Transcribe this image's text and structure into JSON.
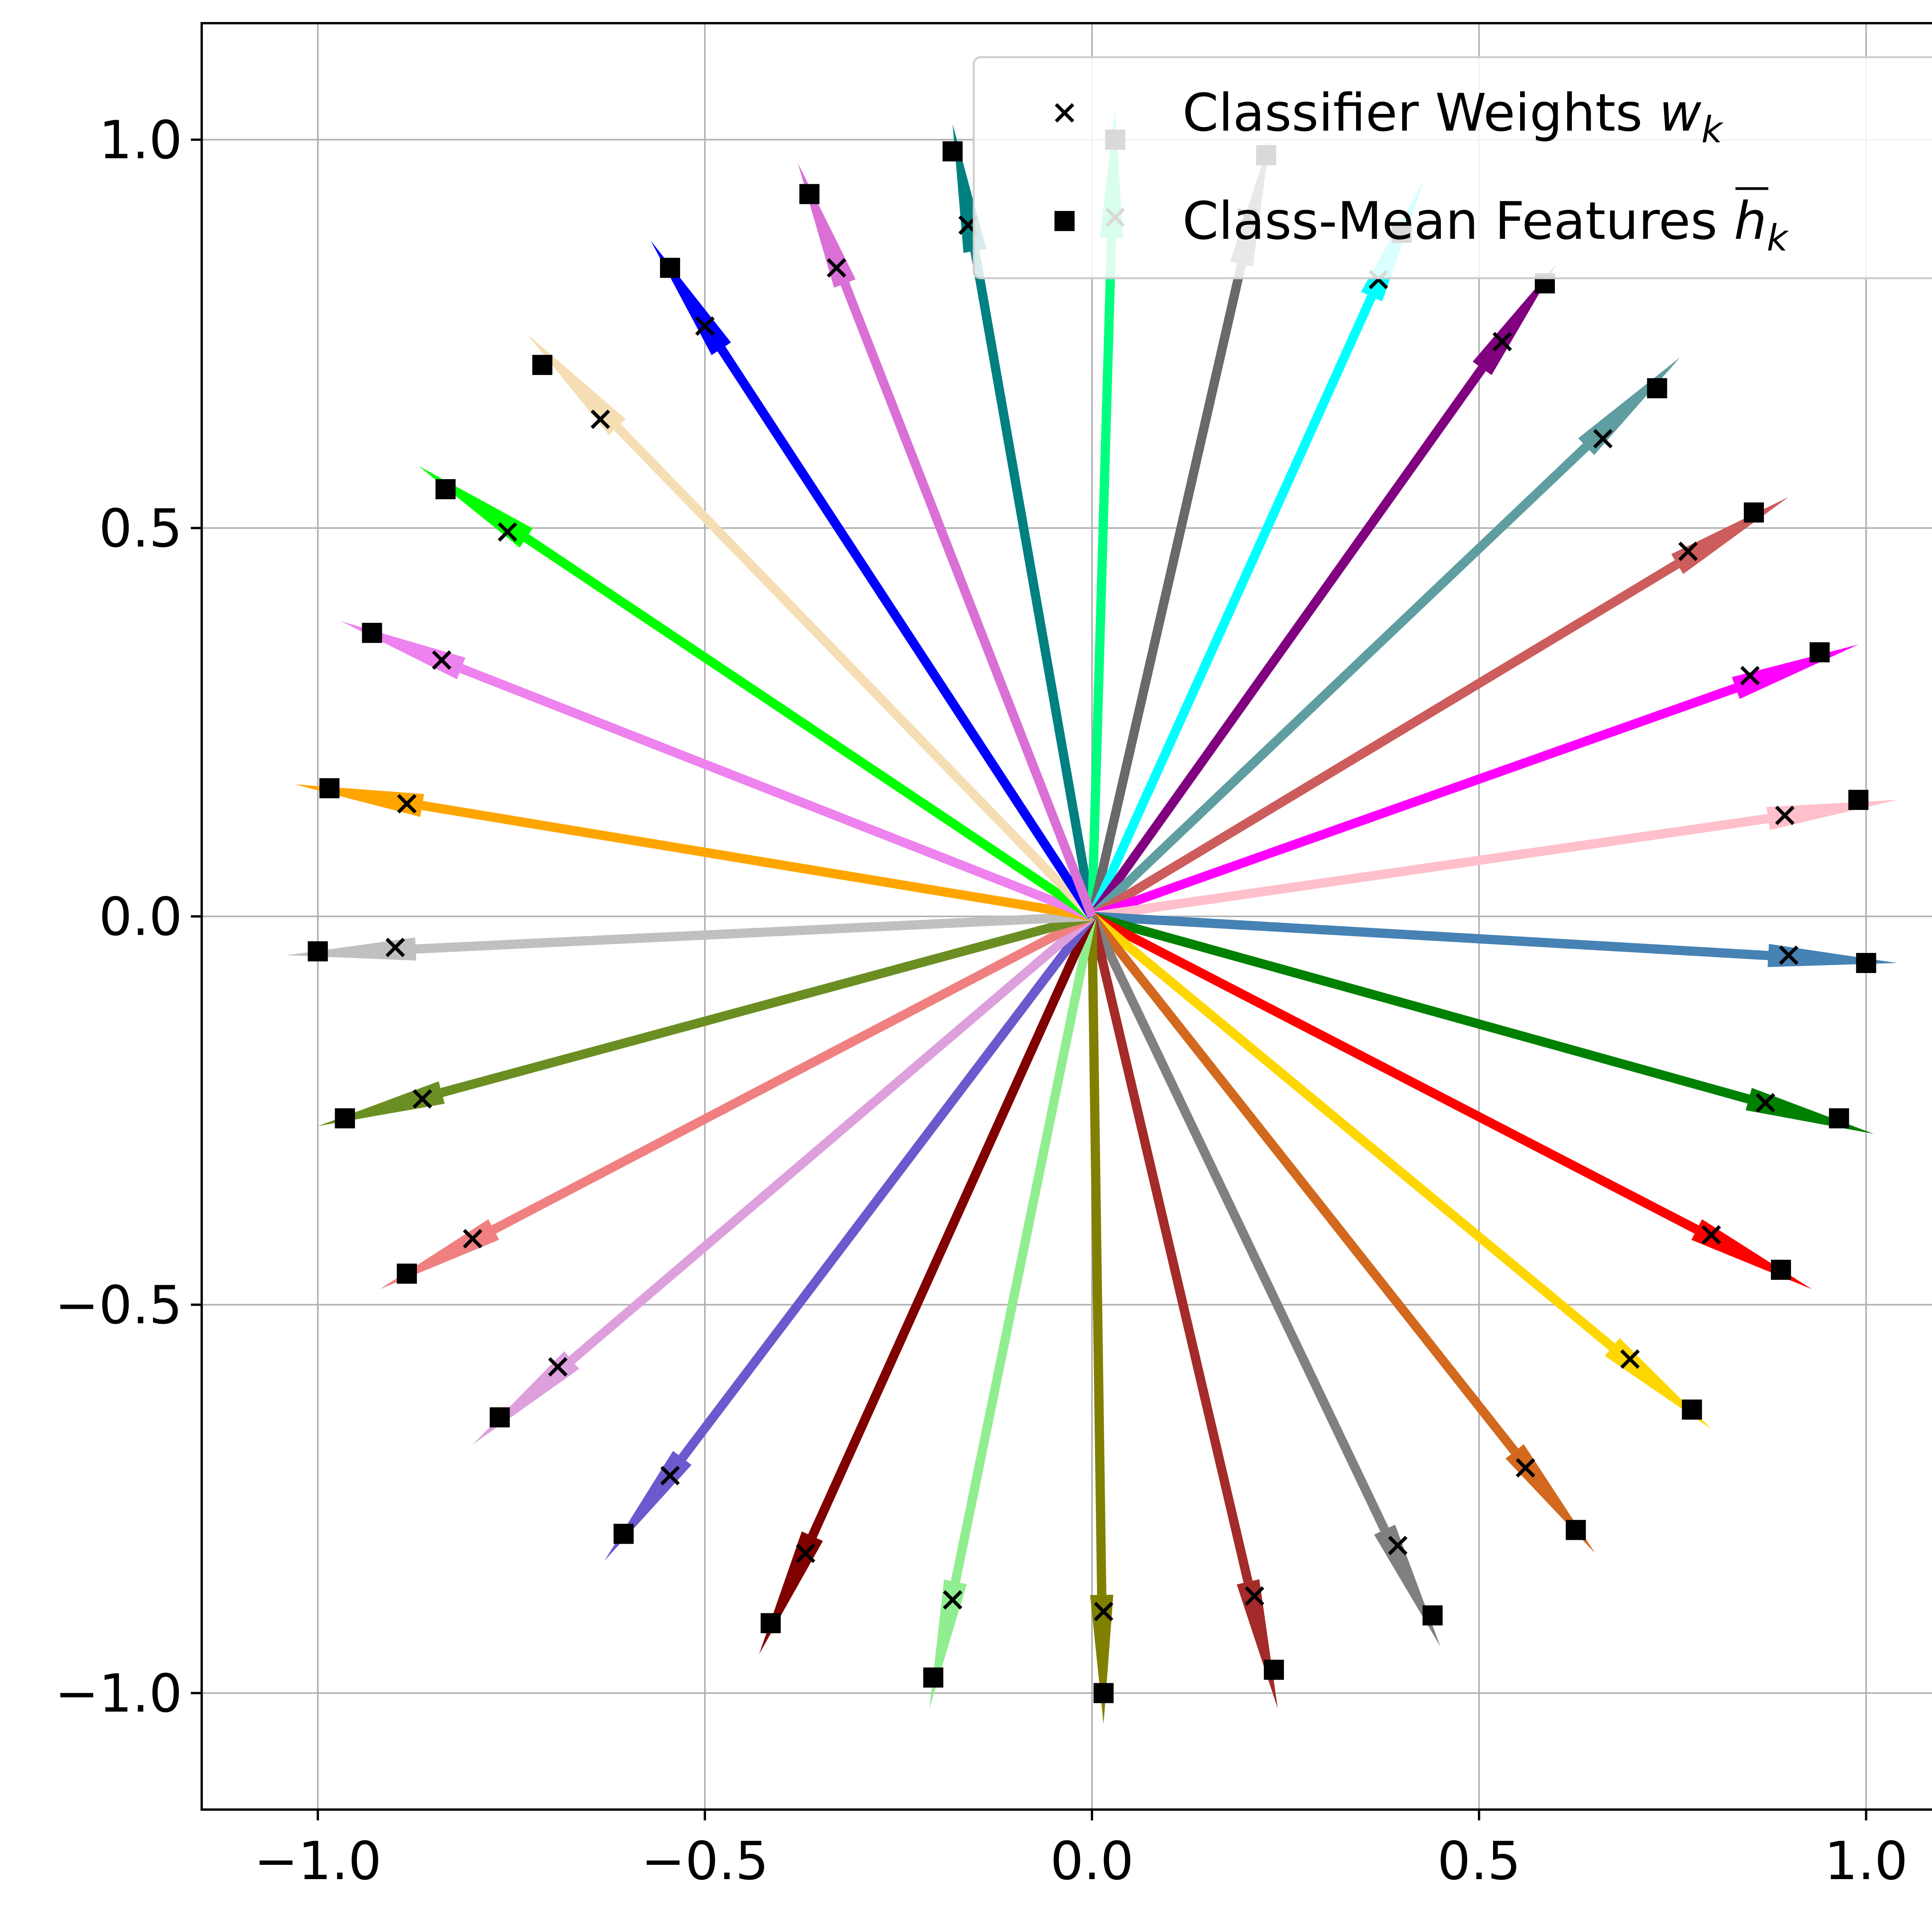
{
  "chart_data": {
    "type": "scatter",
    "title": "",
    "xlabel": "",
    "ylabel": "",
    "xlim": [
      -1.15,
      1.15
    ],
    "ylim": [
      -1.15,
      1.15
    ],
    "grid": true,
    "xticks": [
      -1.0,
      -0.5,
      0.0,
      0.5,
      1.0
    ],
    "yticks": [
      -1.0,
      -0.5,
      0.0,
      0.5,
      1.0
    ],
    "xtick_labels": [
      "−1.0",
      "−0.5",
      "0.0",
      "0.5",
      "1.0"
    ],
    "ytick_labels": [
      "−1.0",
      "−0.5",
      "0.0",
      "0.5",
      "1.0"
    ],
    "legend": {
      "placement": "top-right",
      "entries": [
        {
          "marker": "x",
          "text": "Classifier Weights ",
          "math": "w",
          "sub": "k"
        },
        {
          "marker": "square",
          "text": "Class-Mean Features ",
          "math": "h",
          "sub": "k",
          "overline": true
        }
      ]
    },
    "classes": [
      {
        "color": "#008080",
        "tip": [
          -0.18,
          1.02
        ],
        "w": [
          -0.16,
          0.89
        ],
        "h": [
          -0.18,
          0.985
        ]
      },
      {
        "color": "#00ff7f",
        "tip": [
          0.03,
          1.04
        ],
        "w": [
          0.03,
          0.9
        ],
        "h": [
          0.03,
          1.0
        ]
      },
      {
        "color": "#696969",
        "tip": [
          0.23,
          1.0
        ],
        "w": [
          0.2,
          0.9
        ],
        "h": [
          0.225,
          0.98
        ]
      },
      {
        "color": "#00ffff",
        "tip": [
          0.43,
          0.95
        ],
        "w": [
          0.37,
          0.82
        ],
        "h": [
          0.4,
          0.88
        ]
      },
      {
        "color": "#800080",
        "tip": [
          0.6,
          0.84
        ],
        "w": [
          0.53,
          0.74
        ],
        "h": [
          0.585,
          0.815
        ]
      },
      {
        "color": "#5f9ea0",
        "tip": [
          0.76,
          0.72
        ],
        "w": [
          0.66,
          0.615
        ],
        "h": [
          0.73,
          0.68
        ]
      },
      {
        "color": "#cd5c5c",
        "tip": [
          0.9,
          0.54
        ],
        "w": [
          0.77,
          0.47
        ],
        "h": [
          0.855,
          0.52
        ]
      },
      {
        "color": "#ff00ff",
        "tip": [
          0.99,
          0.35
        ],
        "w": [
          0.85,
          0.31
        ],
        "h": [
          0.94,
          0.34
        ]
      },
      {
        "color": "#ffc0cb",
        "tip": [
          1.04,
          0.15
        ],
        "w": [
          0.895,
          0.13
        ],
        "h": [
          0.99,
          0.15
        ]
      },
      {
        "color": "#4682b4",
        "tip": [
          1.04,
          -0.06
        ],
        "w": [
          0.9,
          -0.05
        ],
        "h": [
          1.0,
          -0.06
        ]
      },
      {
        "color": "#008000",
        "tip": [
          1.01,
          -0.28
        ],
        "w": [
          0.87,
          -0.24
        ],
        "h": [
          0.965,
          -0.26
        ]
      },
      {
        "color": "#ff0000",
        "tip": [
          0.93,
          -0.48
        ],
        "w": [
          0.8,
          -0.41
        ],
        "h": [
          0.89,
          -0.455
        ]
      },
      {
        "color": "#ffd700",
        "tip": [
          0.8,
          -0.66
        ],
        "w": [
          0.695,
          -0.57
        ],
        "h": [
          0.775,
          -0.635
        ]
      },
      {
        "color": "#d2691e",
        "tip": [
          0.65,
          -0.82
        ],
        "w": [
          0.56,
          -0.71
        ],
        "h": [
          0.625,
          -0.79
        ]
      },
      {
        "color": "#808080",
        "tip": [
          0.45,
          -0.94
        ],
        "w": [
          0.395,
          -0.81
        ],
        "h": [
          0.44,
          -0.9
        ]
      },
      {
        "color": "#a52a2a",
        "tip": [
          0.24,
          -1.02
        ],
        "w": [
          0.21,
          -0.875
        ],
        "h": [
          0.235,
          -0.97
        ]
      },
      {
        "color": "#808000",
        "tip": [
          0.015,
          -1.04
        ],
        "w": [
          0.015,
          -0.895
        ],
        "h": [
          0.015,
          -1.0
        ]
      },
      {
        "color": "#90ee90",
        "tip": [
          -0.21,
          -1.02
        ],
        "w": [
          -0.18,
          -0.88
        ],
        "h": [
          -0.205,
          -0.98
        ]
      },
      {
        "color": "#800000",
        "tip": [
          -0.43,
          -0.95
        ],
        "w": [
          -0.37,
          -0.82
        ],
        "h": [
          -0.415,
          -0.91
        ]
      },
      {
        "color": "#6a5acd",
        "tip": [
          -0.63,
          -0.83
        ],
        "w": [
          -0.545,
          -0.72
        ],
        "h": [
          -0.605,
          -0.795
        ]
      },
      {
        "color": "#dda0dd",
        "tip": [
          -0.8,
          -0.68
        ],
        "w": [
          -0.69,
          -0.58
        ],
        "h": [
          -0.765,
          -0.645
        ]
      },
      {
        "color": "#f08080",
        "tip": [
          -0.92,
          -0.48
        ],
        "w": [
          -0.8,
          -0.415
        ],
        "h": [
          -0.885,
          -0.46
        ]
      },
      {
        "color": "#6b8e23",
        "tip": [
          -1.0,
          -0.27
        ],
        "w": [
          -0.865,
          -0.235
        ],
        "h": [
          -0.965,
          -0.26
        ]
      },
      {
        "color": "#c0c0c0",
        "tip": [
          -1.04,
          -0.05
        ],
        "w": [
          -0.9,
          -0.04
        ],
        "h": [
          -1.0,
          -0.045
        ]
      },
      {
        "color": "#ffa500",
        "tip": [
          -1.03,
          0.17
        ],
        "w": [
          -0.885,
          0.145
        ],
        "h": [
          -0.985,
          0.165
        ]
      },
      {
        "color": "#ee82ee",
        "tip": [
          -0.97,
          0.38
        ],
        "w": [
          -0.84,
          0.33
        ],
        "h": [
          -0.93,
          0.365
        ]
      },
      {
        "color": "#00ff00",
        "tip": [
          -0.87,
          0.58
        ],
        "w": [
          -0.755,
          0.495
        ],
        "h": [
          -0.835,
          0.55
        ]
      },
      {
        "color": "#f5deb3",
        "tip": [
          -0.73,
          0.75
        ],
        "w": [
          -0.635,
          0.64
        ],
        "h": [
          -0.71,
          0.71
        ]
      },
      {
        "color": "#0000ff",
        "tip": [
          -0.57,
          0.87
        ],
        "w": [
          -0.5,
          0.76
        ],
        "h": [
          -0.545,
          0.835
        ]
      },
      {
        "color": "#da70d6",
        "tip": [
          -0.38,
          0.97
        ],
        "w": [
          -0.33,
          0.835
        ],
        "h": [
          -0.365,
          0.93
        ]
      }
    ]
  }
}
